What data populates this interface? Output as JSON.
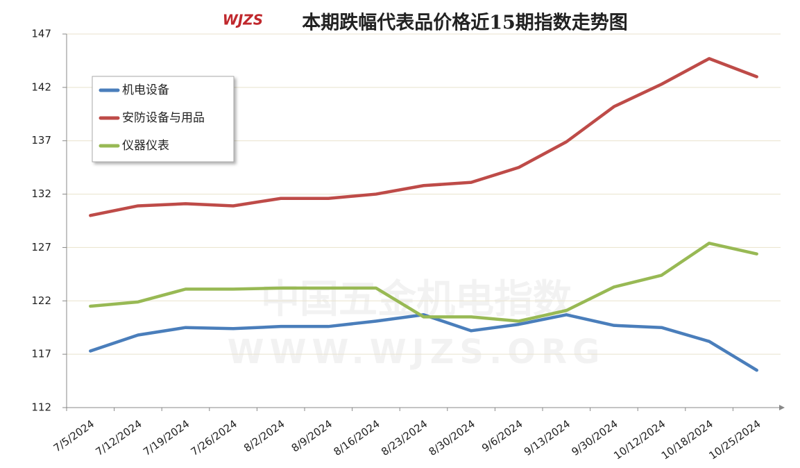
{
  "chart_data": {
    "type": "line",
    "title": "本期跌幅代表品价格近15期指数走势图",
    "logo": "WJZS",
    "watermark": [
      "中国五金机电指数",
      "WWW.WJZS.ORG"
    ],
    "categories": [
      "7/5/2024",
      "7/12/2024",
      "7/19/2024",
      "7/26/2024",
      "8/2/2024",
      "8/9/2024",
      "8/16/2024",
      "8/23/2024",
      "8/30/2024",
      "9/6/2024",
      "9/13/2024",
      "9/30/2024",
      "10/12/2024",
      "10/18/2024",
      "10/25/2024"
    ],
    "series": [
      {
        "name": "机电设备",
        "color": "#4a7ebb",
        "values": [
          117.3,
          118.8,
          119.5,
          119.4,
          119.6,
          119.6,
          120.1,
          120.7,
          119.2,
          119.8,
          120.7,
          119.7,
          119.5,
          118.2,
          115.5
        ]
      },
      {
        "name": "安防设备与用品",
        "color": "#be4b48",
        "values": [
          130.0,
          130.9,
          131.1,
          130.9,
          131.6,
          131.6,
          132.0,
          132.8,
          133.1,
          134.5,
          136.9,
          140.2,
          142.3,
          144.7,
          143.0
        ]
      },
      {
        "name": "仪器仪表",
        "color": "#98b954",
        "values": [
          121.5,
          121.9,
          123.1,
          123.1,
          123.2,
          123.2,
          123.2,
          120.5,
          120.5,
          120.1,
          121.1,
          123.3,
          124.4,
          127.4,
          126.4
        ]
      }
    ],
    "ylim": [
      112,
      147
    ],
    "yticks": [
      112,
      117,
      122,
      127,
      132,
      137,
      142,
      147
    ],
    "grid": true,
    "legend": "top-left"
  }
}
